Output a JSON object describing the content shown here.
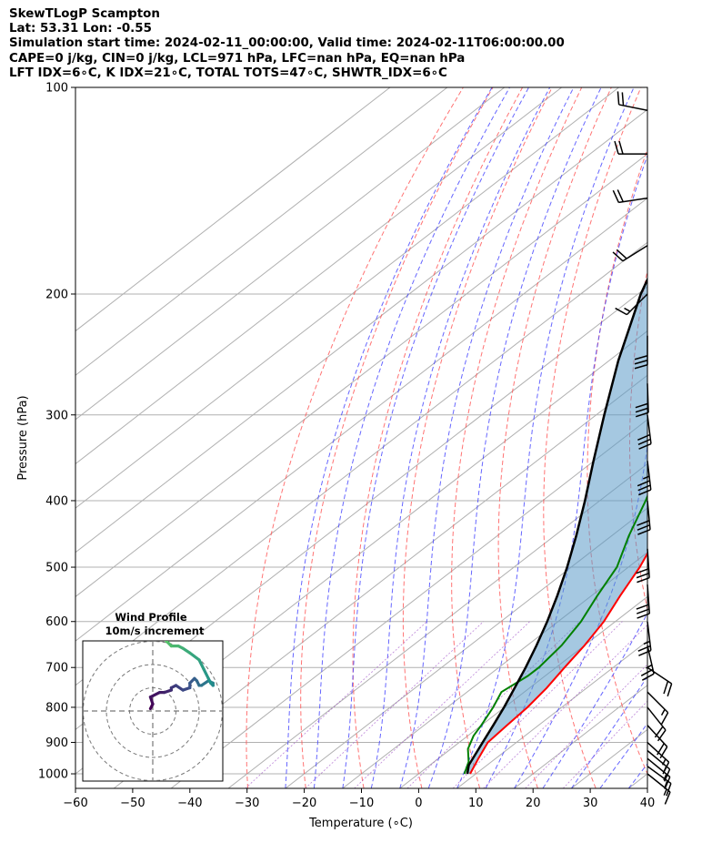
{
  "header": {
    "title_lines": [
      "SkewTLogP Scampton",
      "Lat: 53.31   Lon: -0.55",
      "Simulation start time: 2024-02-11_00:00:00, Valid time: 2024-02-11T06:00:00.00",
      "CAPE=0 j/kg, CIN=0 j/kg, LCL=971 hPa, LFC=nan hPa, EQ=nan hPa",
      "LFT IDX=6∘C, K IDX=21∘C, TOTAL TOTS=47∘C, SHWTR_IDX=6∘C"
    ]
  },
  "chart_data": {
    "type": "line",
    "subtype": "skew-t log-p",
    "xlabel": "Temperature (∘C)",
    "ylabel": "Pressure (hPa)",
    "xlim": [
      -60,
      40
    ],
    "ylim": [
      1050,
      100
    ],
    "log_y": true,
    "grid": true,
    "x_ticks": [
      -60,
      -50,
      -40,
      -30,
      -20,
      -10,
      0,
      10,
      20,
      30,
      40
    ],
    "y_ticks": [
      100,
      200,
      300,
      400,
      500,
      600,
      700,
      800,
      900,
      1000
    ],
    "series": [
      {
        "role": "temperature",
        "color": "#ff0000",
        "points": [
          [
            1000,
            9
          ],
          [
            950,
            7
          ],
          [
            900,
            5
          ],
          [
            850,
            4.5
          ],
          [
            800,
            4
          ],
          [
            750,
            3
          ],
          [
            700,
            1.5
          ],
          [
            650,
            0
          ],
          [
            600,
            -2
          ],
          [
            550,
            -5
          ],
          [
            500,
            -8
          ],
          [
            450,
            -12
          ],
          [
            400,
            -17
          ],
          [
            350,
            -23
          ],
          [
            320,
            -28
          ],
          [
            300,
            -33
          ],
          [
            290,
            -37
          ],
          [
            270,
            -39
          ],
          [
            250,
            -42
          ],
          [
            230,
            -46
          ],
          [
            200,
            -51
          ],
          [
            180,
            -55
          ],
          [
            150,
            -59
          ],
          [
            130,
            -62
          ],
          [
            110,
            -65
          ],
          [
            100,
            -66
          ]
        ]
      },
      {
        "role": "dewpoint",
        "color": "#008000",
        "points": [
          [
            1000,
            8
          ],
          [
            960,
            6
          ],
          [
            920,
            3
          ],
          [
            880,
            1
          ],
          [
            850,
            0
          ],
          [
            800,
            -2
          ],
          [
            760,
            -4
          ],
          [
            720,
            -3
          ],
          [
            700,
            -3
          ],
          [
            650,
            -4
          ],
          [
            600,
            -6
          ],
          [
            550,
            -9
          ],
          [
            500,
            -12
          ],
          [
            450,
            -17
          ],
          [
            400,
            -22
          ],
          [
            350,
            -28
          ],
          [
            320,
            -32
          ],
          [
            290,
            -37
          ],
          [
            275,
            -37
          ],
          [
            260,
            -43
          ],
          [
            240,
            -48
          ],
          [
            220,
            -51
          ],
          [
            200,
            -55
          ],
          [
            180,
            -60
          ],
          [
            160,
            -64
          ],
          [
            140,
            -68
          ],
          [
            120,
            -73
          ],
          [
            100,
            -78
          ]
        ]
      },
      {
        "role": "parcel",
        "color": "#000000",
        "points": [
          [
            1000,
            8.5
          ],
          [
            971,
            6.8
          ],
          [
            900,
            4.1
          ],
          [
            850,
            2.1
          ],
          [
            800,
            -0.1
          ],
          [
            750,
            -2.6
          ],
          [
            700,
            -5.3
          ],
          [
            650,
            -8.4
          ],
          [
            600,
            -11.9
          ],
          [
            550,
            -16.0
          ],
          [
            500,
            -20.7
          ],
          [
            450,
            -26.2
          ],
          [
            400,
            -32.6
          ],
          [
            350,
            -40.1
          ],
          [
            300,
            -48.6
          ],
          [
            250,
            -58.4
          ],
          [
            200,
            -69.5
          ],
          [
            150,
            -82.0
          ],
          [
            100,
            -96.5
          ]
        ]
      }
    ],
    "wind_barbs": [
      {
        "p": 1000,
        "u": -10,
        "v": 8
      },
      {
        "p": 975,
        "u": -11,
        "v": 8
      },
      {
        "p": 950,
        "u": -11,
        "v": 9
      },
      {
        "p": 925,
        "u": -12,
        "v": 10
      },
      {
        "p": 900,
        "u": -12,
        "v": 11
      },
      {
        "p": 850,
        "u": -12,
        "v": 13
      },
      {
        "p": 800,
        "u": -12,
        "v": 15
      },
      {
        "p": 760,
        "u": -12,
        "v": 12
      },
      {
        "p": 700,
        "u": -18,
        "v": 12
      },
      {
        "p": 650,
        "u": -5,
        "v": 22
      },
      {
        "p": 600,
        "u": -3,
        "v": 25
      },
      {
        "p": 530,
        "u": -2,
        "v": 28
      },
      {
        "p": 470,
        "u": -2,
        "v": 30
      },
      {
        "p": 400,
        "u": -3,
        "v": 32
      },
      {
        "p": 350,
        "u": -4,
        "v": 34
      },
      {
        "p": 300,
        "u": -4,
        "v": 32
      },
      {
        "p": 270,
        "u": -1,
        "v": 30
      },
      {
        "p": 230,
        "u": 0,
        "v": 28
      },
      {
        "p": 200,
        "u": 12,
        "v": 12
      },
      {
        "p": 170,
        "u": 16,
        "v": 10
      },
      {
        "p": 145,
        "u": 20,
        "v": 3
      },
      {
        "p": 125,
        "u": 22,
        "v": 0
      },
      {
        "p": 108,
        "u": 20,
        "v": -4
      }
    ],
    "hodograph": {
      "title": "Wind Profile",
      "subtitle": "10m/s increment",
      "ring_step": 10,
      "points": [
        [
          -1,
          1
        ],
        [
          0,
          3
        ],
        [
          -1,
          6
        ],
        [
          3,
          8
        ],
        [
          5,
          8
        ],
        [
          8,
          9
        ],
        [
          8,
          10
        ],
        [
          10,
          11
        ],
        [
          13,
          9
        ],
        [
          16,
          10
        ],
        [
          16,
          12
        ],
        [
          18,
          14
        ],
        [
          19,
          13
        ],
        [
          20,
          11
        ],
        [
          21,
          11
        ],
        [
          24,
          13
        ],
        [
          26,
          12
        ],
        [
          26,
          11
        ],
        [
          25,
          12
        ],
        [
          24,
          14
        ],
        [
          22,
          18
        ],
        [
          20,
          22
        ],
        [
          16,
          25
        ],
        [
          13,
          27
        ],
        [
          11,
          28
        ],
        [
          8,
          28
        ],
        [
          6,
          30
        ],
        [
          4,
          32
        ],
        [
          3,
          34
        ],
        [
          3,
          37
        ],
        [
          4,
          40
        ],
        [
          5,
          42
        ],
        [
          7,
          43
        ],
        [
          10,
          45
        ],
        [
          14,
          47
        ],
        [
          16,
          49
        ],
        [
          19,
          49
        ]
      ]
    }
  }
}
